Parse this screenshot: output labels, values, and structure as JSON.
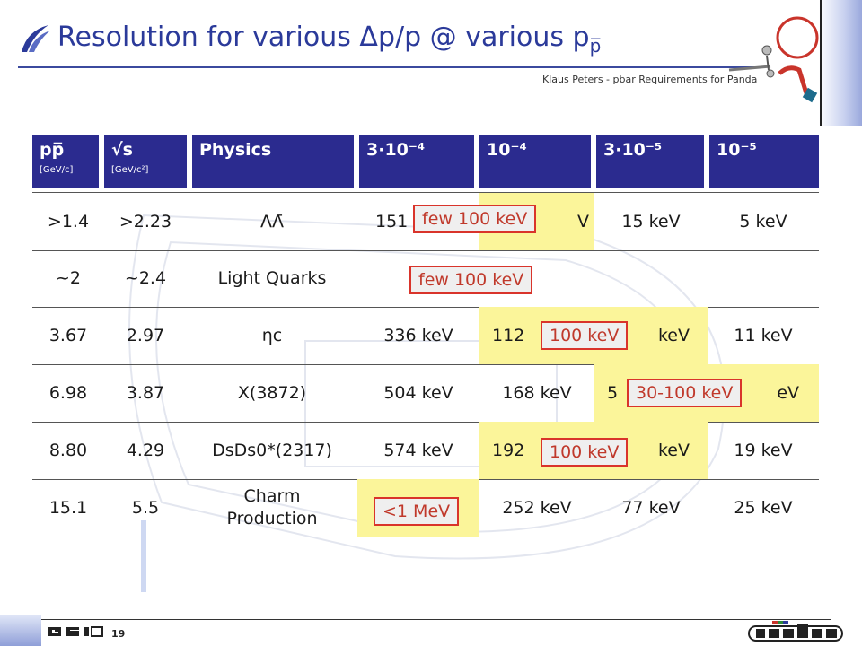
{
  "header": {
    "title_main": "Resolution for various Δp/p @ various p",
    "title_sub": "p̅",
    "subtitle": "Klaus Peters - pbar Requirements for Panda"
  },
  "table": {
    "columns": [
      {
        "main": "pp̅",
        "unit": "[GeV/c]"
      },
      {
        "main": "√s",
        "unit": "[GeV/c²]"
      },
      {
        "main": "Physics",
        "unit": ""
      },
      {
        "main": "3·10⁻⁴",
        "unit": ""
      },
      {
        "main": "10⁻⁴",
        "unit": ""
      },
      {
        "main": "3·10⁻⁵",
        "unit": ""
      },
      {
        "main": "10⁻⁵",
        "unit": ""
      }
    ],
    "rows": [
      [
        "&gt;1.4",
        ">2.23",
        "ΛΛ̄",
        "151",
        "V",
        "15 keV",
        "5 keV"
      ],
      [
        "~2",
        "~2.4",
        "Light Quarks",
        "",
        "",
        "",
        ""
      ],
      [
        "3.67",
        "2.97",
        "ηc",
        "336 keV",
        "112",
        "keV",
        "11 keV"
      ],
      [
        "6.98",
        "3.87",
        "X(3872)",
        "504 keV",
        "168 keV",
        "5",
        "eV"
      ],
      [
        "8.80",
        "4.29",
        "DsDs0*(2317)",
        "574 keV",
        "192",
        "keV",
        "19 keV"
      ],
      [
        "15.1",
        "5.5",
        "Charm Production",
        "",
        "252 keV",
        "77 keV",
        "25 keV"
      ]
    ]
  },
  "callouts": [
    "few 100 keV",
    "few 100 keV",
    "100 keV",
    "30-100 keV",
    "100 keV",
    "<1 MeV"
  ],
  "footer": {
    "page_number": "19"
  },
  "colors": {
    "header_bg": "#2b2b8f",
    "highlight": "#fbf59a",
    "callout_border": "#d9342b",
    "title": "#2b3a9a"
  }
}
